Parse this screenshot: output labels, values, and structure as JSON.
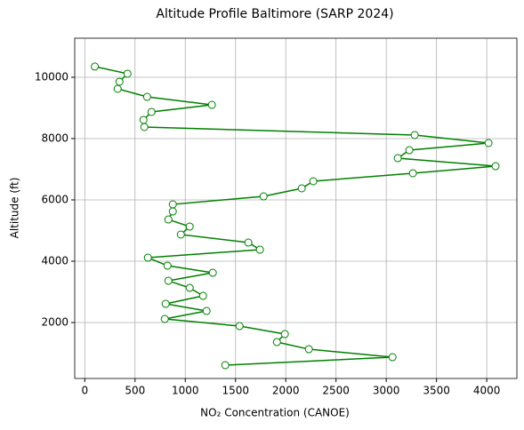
{
  "chart_data": {
    "type": "line",
    "title": "Altitude Profile Baltimore (SARP 2024)",
    "x_label": "NO₂ Concentration (CANOE)",
    "y_label": "Altitude (ft)",
    "x": [
      100,
      425,
      345,
      327,
      620,
      1265,
      664,
      584,
      593,
      3283,
      4018,
      3230,
      3115,
      4088,
      3265,
      2274,
      2159,
      1779,
      876,
      876,
      832,
      1044,
      956,
      1628,
      1743,
      628,
      823,
      1274,
      832,
      1044,
      1177,
      805,
      1212,
      796,
      1540,
      1991,
      1912,
      2230,
      3062,
      1398
    ],
    "values": [
      10350,
      10116,
      9855,
      9623,
      9362,
      9101,
      8870,
      8609,
      8377,
      8116,
      7855,
      7623,
      7362,
      7101,
      6870,
      6609,
      6377,
      6116,
      5855,
      5623,
      5362,
      5130,
      4870,
      4609,
      4377,
      4116,
      3855,
      3623,
      3362,
      3130,
      2870,
      2609,
      2377,
      2116,
      1884,
      1623,
      1362,
      1130,
      870,
      609
    ],
    "color": "#008000",
    "marker_fill": "#ffffff",
    "xlim": [
      -100,
      4300
    ],
    "ylim": [
      175,
      11275
    ],
    "xticks": [
      0,
      500,
      1000,
      1500,
      2000,
      2500,
      3000,
      3500,
      4000
    ],
    "yticks": [
      2000,
      4000,
      6000,
      8000,
      10000
    ],
    "grid": true
  }
}
